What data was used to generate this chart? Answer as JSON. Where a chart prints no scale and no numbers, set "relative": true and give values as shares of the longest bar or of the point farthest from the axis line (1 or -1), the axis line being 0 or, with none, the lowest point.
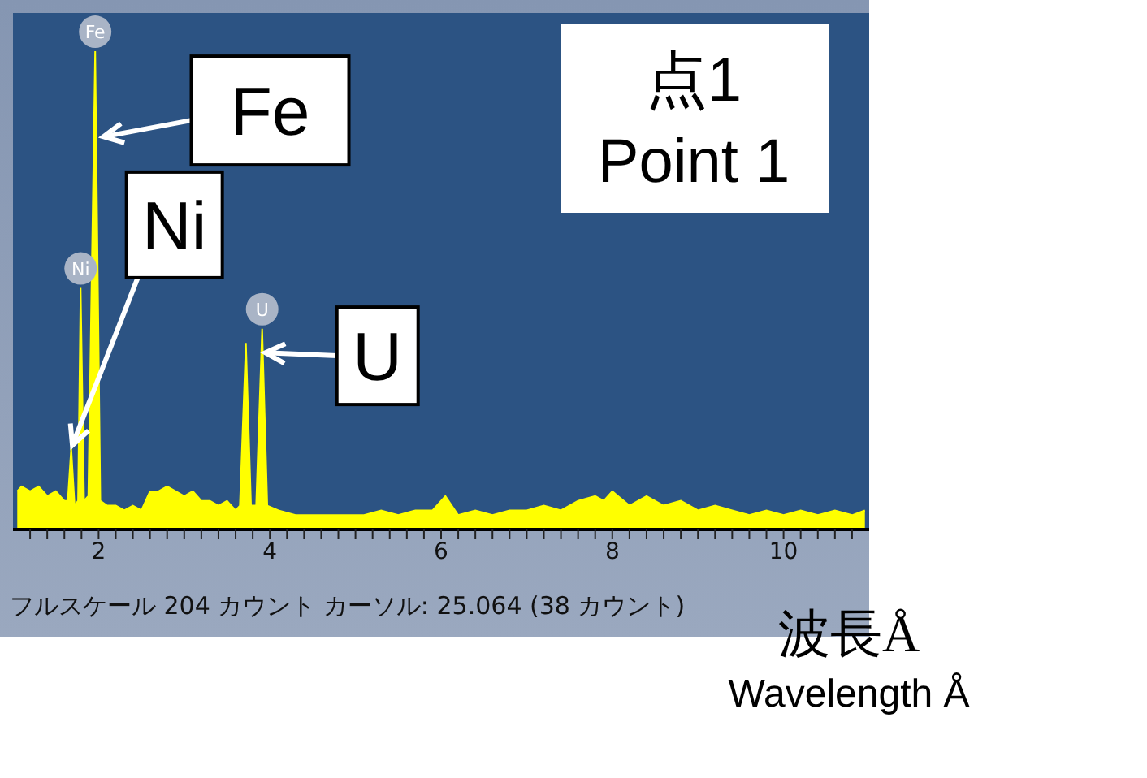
{
  "chart_data": {
    "type": "area",
    "relative": true,
    "xlabel": "波長Å\nWavelength Å",
    "xlim": [
      1,
      11
    ],
    "xticks": [
      {
        "value": 1.2,
        "label": null
      },
      {
        "value": 1.4,
        "label": null
      },
      {
        "value": 1.6,
        "label": null
      },
      {
        "value": 1.8,
        "label": null
      },
      2,
      {
        "value": 2.2,
        "label": null
      },
      {
        "value": 2.4,
        "label": null
      },
      {
        "value": 2.6,
        "label": null
      },
      {
        "value": 2.8,
        "label": null
      },
      {
        "value": 3,
        "label": null
      },
      {
        "value": 3.2,
        "label": null
      },
      {
        "value": 3.4,
        "label": null
      },
      {
        "value": 3.6,
        "label": null
      },
      {
        "value": 3.8,
        "label": null
      },
      4,
      {
        "value": 4.2,
        "label": null
      },
      {
        "value": 4.4,
        "label": null
      },
      {
        "value": 4.6,
        "label": null
      },
      {
        "value": 4.8,
        "label": null
      },
      {
        "value": 5,
        "label": null
      },
      {
        "value": 5.2,
        "label": null
      },
      {
        "value": 5.4,
        "label": null
      },
      {
        "value": 5.6,
        "label": null
      },
      {
        "value": 5.8,
        "label": null
      },
      6,
      {
        "value": 6.2,
        "label": null
      },
      {
        "value": 6.4,
        "label": null
      },
      {
        "value": 6.6,
        "label": null
      },
      {
        "value": 6.8,
        "label": null
      },
      {
        "value": 7,
        "label": null
      },
      {
        "value": 7.2,
        "label": null
      },
      {
        "value": 7.4,
        "label": null
      },
      {
        "value": 7.6,
        "label": null
      },
      {
        "value": 7.8,
        "label": null
      },
      8,
      {
        "value": 8.2,
        "label": null
      },
      {
        "value": 8.4,
        "label": null
      },
      {
        "value": 8.6,
        "label": null
      },
      {
        "value": 8.8,
        "label": null
      },
      {
        "value": 9,
        "label": null
      },
      {
        "value": 9.2,
        "label": null
      },
      {
        "value": 9.4,
        "label": null
      },
      {
        "value": 9.6,
        "label": null
      },
      {
        "value": 9.8,
        "label": null
      },
      10,
      {
        "value": 10.2,
        "label": null
      },
      {
        "value": 10.4,
        "label": null
      },
      {
        "value": 10.6,
        "label": null
      },
      {
        "value": 10.8,
        "label": null
      }
    ],
    "x": [
      1.05,
      1.1,
      1.2,
      1.3,
      1.4,
      1.5,
      1.6,
      1.64,
      1.68,
      1.72,
      1.76,
      1.79,
      1.83,
      1.88,
      1.96,
      2.02,
      2.1,
      2.2,
      2.3,
      2.4,
      2.5,
      2.6,
      2.7,
      2.8,
      2.9,
      3.0,
      3.1,
      3.2,
      3.3,
      3.4,
      3.5,
      3.6,
      3.65,
      3.72,
      3.78,
      3.84,
      3.91,
      3.97,
      4.1,
      4.3,
      4.5,
      4.7,
      4.9,
      5.1,
      5.3,
      5.5,
      5.7,
      5.9,
      6.05,
      6.2,
      6.4,
      6.6,
      6.8,
      7.0,
      7.2,
      7.4,
      7.6,
      7.8,
      7.9,
      8.0,
      8.2,
      8.4,
      8.6,
      8.8,
      9.0,
      9.2,
      9.4,
      9.6,
      9.8,
      10.0,
      10.2,
      10.4,
      10.6,
      10.8,
      10.95
    ],
    "series": [
      {
        "color": "#ffff00",
        "values": [
          0.08,
          0.09,
          0.08,
          0.09,
          0.07,
          0.08,
          0.06,
          0.06,
          0.17,
          0.05,
          0.06,
          0.505,
          0.06,
          0.07,
          1.0,
          0.06,
          0.05,
          0.05,
          0.04,
          0.05,
          0.04,
          0.08,
          0.08,
          0.09,
          0.08,
          0.07,
          0.08,
          0.06,
          0.06,
          0.05,
          0.06,
          0.04,
          0.05,
          0.39,
          0.05,
          0.05,
          0.42,
          0.05,
          0.04,
          0.03,
          0.03,
          0.03,
          0.03,
          0.03,
          0.04,
          0.03,
          0.04,
          0.04,
          0.07,
          0.03,
          0.04,
          0.03,
          0.04,
          0.04,
          0.05,
          0.04,
          0.06,
          0.07,
          0.06,
          0.08,
          0.05,
          0.07,
          0.05,
          0.06,
          0.04,
          0.05,
          0.04,
          0.03,
          0.04,
          0.03,
          0.04,
          0.03,
          0.04,
          0.03,
          0.04
        ]
      }
    ],
    "annotations": [
      {
        "text": "Fe",
        "x": 1.96,
        "y": 1.0
      },
      {
        "text": "Ni",
        "x": 1.79,
        "y": 0.505
      },
      {
        "text": "U",
        "x": 3.91,
        "y": 0.42
      },
      {
        "text": "Fe",
        "x": 2.02,
        "y": 0.82
      },
      {
        "text": "Ni",
        "x": 1.68,
        "y": 0.17
      },
      {
        "text": "U",
        "x": 3.91,
        "y": 0.37
      },
      "点1\nPoint 1",
      "フルスケール 204 カウント カーソル: 25.064 (38 カウント)"
    ]
  }
}
